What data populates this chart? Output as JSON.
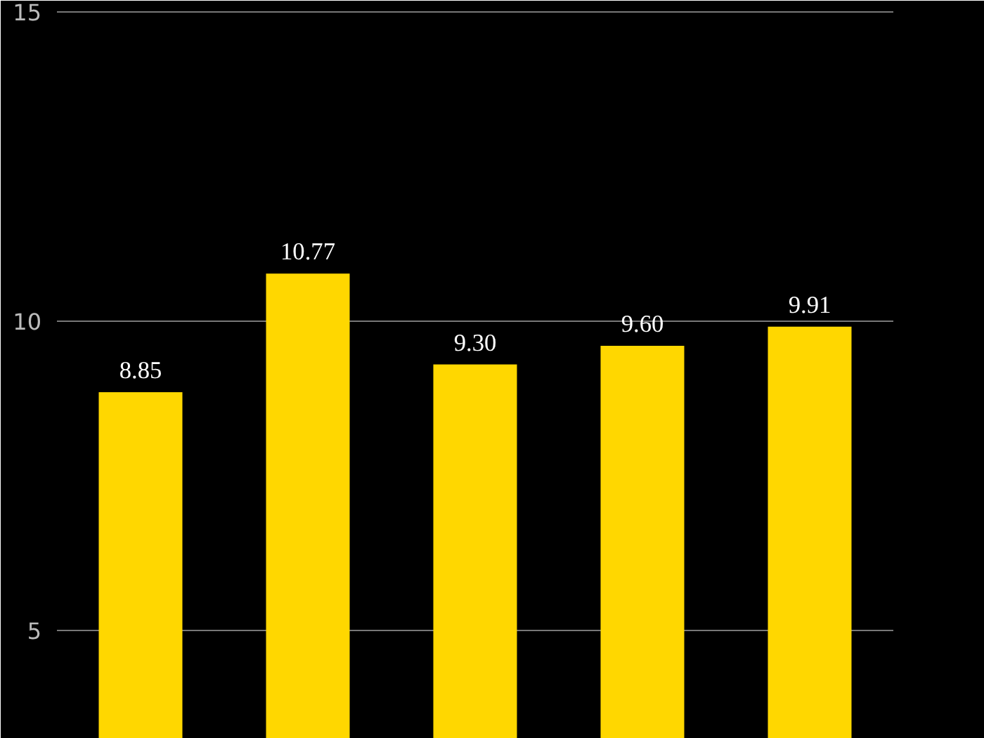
{
  "chart_data": {
    "type": "bar",
    "categories": [
      null,
      null,
      null,
      null,
      null
    ],
    "values": [
      8.85,
      10.77,
      9.3,
      9.6,
      9.91
    ],
    "value_labels": [
      "8.85",
      "10.77",
      "9.30",
      "9.60",
      "9.91"
    ],
    "color": "#ffd700",
    "ylim": [
      3.25,
      15.18
    ],
    "yticks": [
      5,
      10,
      15
    ],
    "grid": "y",
    "tick_labels": "y"
  }
}
